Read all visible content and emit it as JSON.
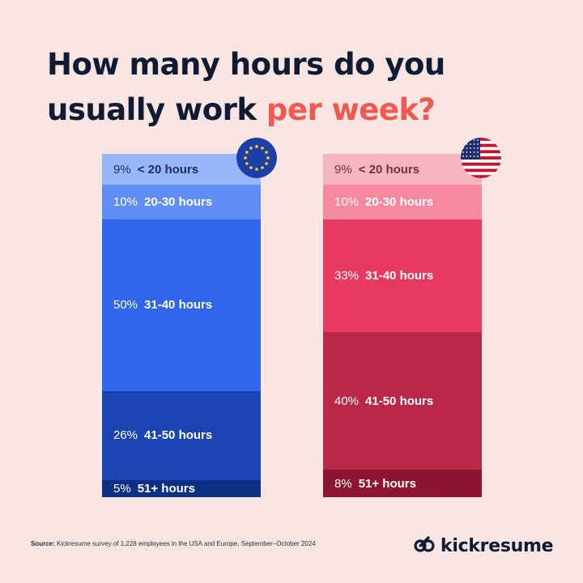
{
  "title": {
    "line1": "How many hours do you",
    "line2_plain": "usually work ",
    "line2_highlight": "per week?"
  },
  "chart_data": {
    "type": "bar",
    "subtype": "stacked-100",
    "categories": [
      "< 20 hours",
      "20-30 hours",
      "31-40 hours",
      "41-50 hours",
      "51+ hours"
    ],
    "series": [
      {
        "region": "Europe",
        "flag_icon": "eu-flag-icon",
        "values": [
          9,
          10,
          50,
          26,
          5
        ],
        "labels": [
          "9%",
          "10%",
          "50%",
          "26%",
          "5%"
        ],
        "colors": [
          "#97b6fb",
          "#5f8ff6",
          "#2f66ec",
          "#1a44b2",
          "#0f2f85"
        ],
        "text_colors": [
          "#1b2d5a",
          "#ffffff",
          "#ffffff",
          "#ffffff",
          "#ffffff"
        ]
      },
      {
        "region": "USA",
        "flag_icon": "us-flag-icon",
        "values": [
          9,
          10,
          33,
          40,
          8
        ],
        "labels": [
          "9%",
          "10%",
          "33%",
          "40%",
          "8%"
        ],
        "colors": [
          "#f7b5c0",
          "#f489a0",
          "#e83a5e",
          "#b92848",
          "#8e1531"
        ],
        "text_colors": [
          "#7a2b3d",
          "#ffffff",
          "#ffffff",
          "#ffffff",
          "#ffffff"
        ]
      }
    ]
  },
  "footer": {
    "source_label": "Source:",
    "source_text": " Kickresume survey of 1,228 employees in the USA and Europe, September–October 2024"
  },
  "brand": {
    "name": "kickresume",
    "logo_icon": "kickresume-logo-icon"
  }
}
